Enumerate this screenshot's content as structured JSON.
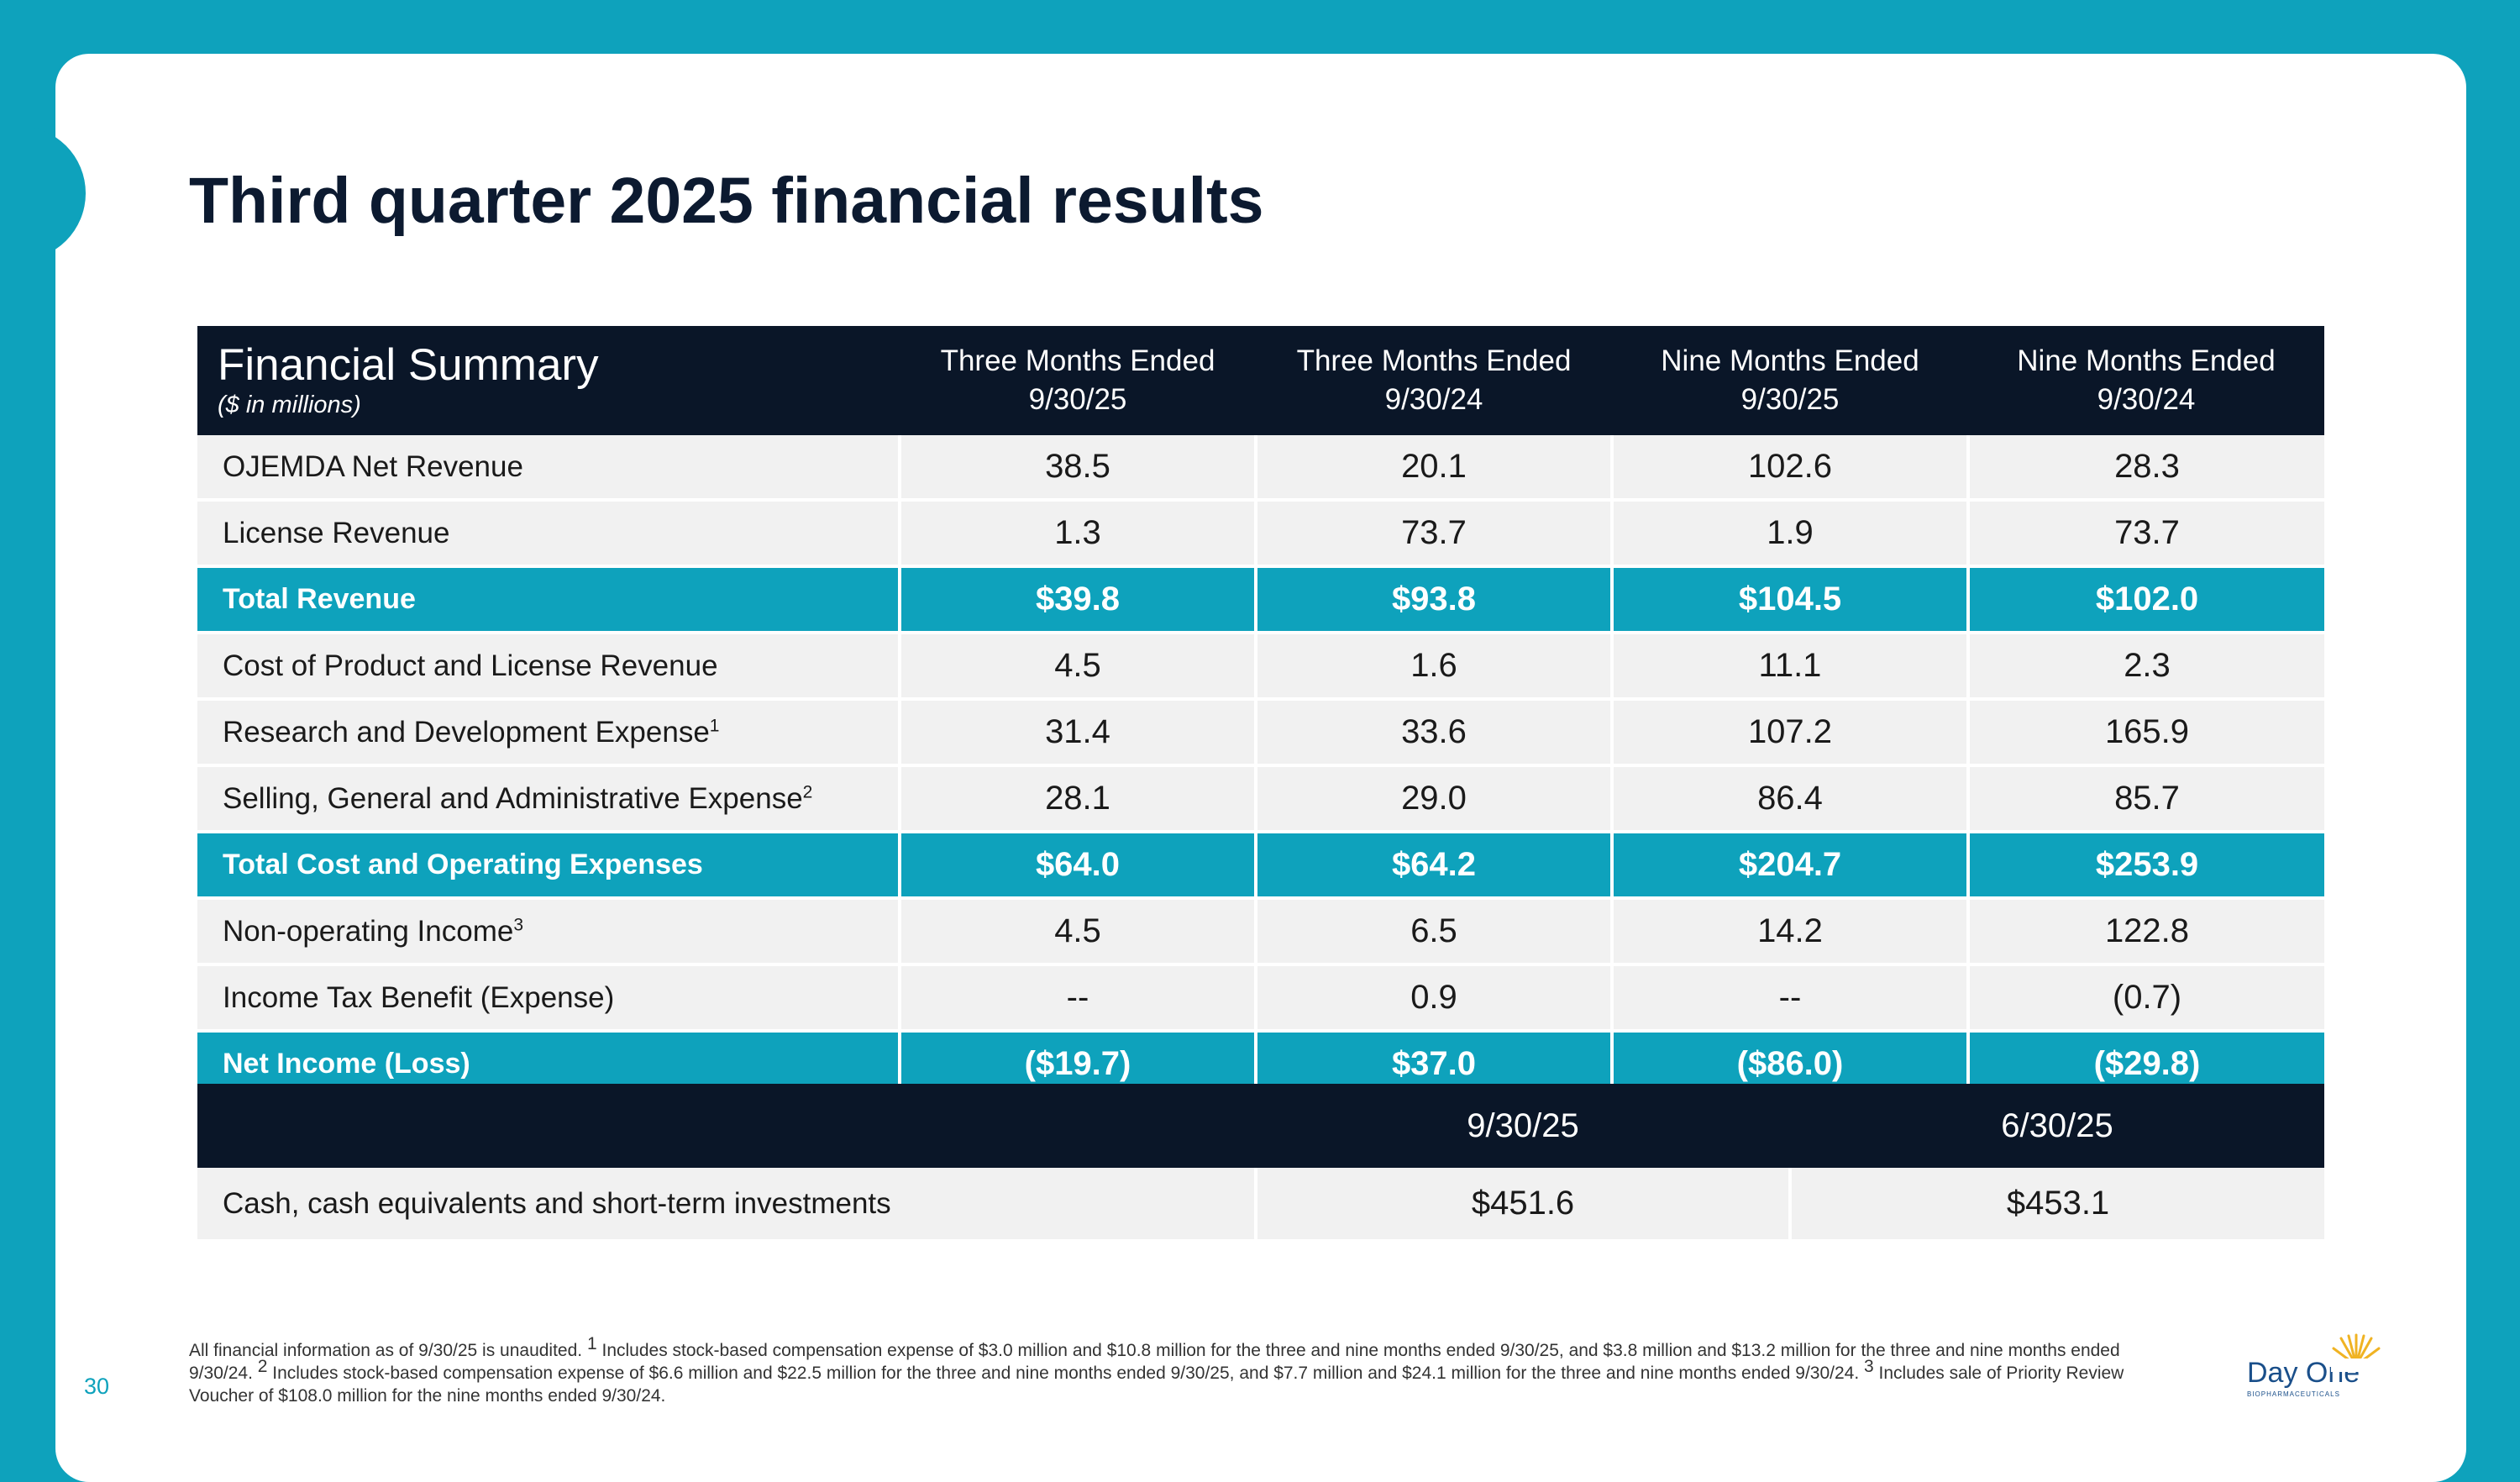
{
  "page": {
    "title": "Third quarter 2025 financial results",
    "page_number": "30"
  },
  "summary": {
    "title": "Financial Summary",
    "subtitle": "($ in millions)",
    "columns": [
      {
        "line1": "Three Months Ended",
        "line2": "9/30/25"
      },
      {
        "line1": "Three Months Ended",
        "line2": "9/30/24"
      },
      {
        "line1": "Nine Months Ended",
        "line2": "9/30/25"
      },
      {
        "line1": "Nine Months Ended",
        "line2": "9/30/24"
      }
    ],
    "rows": [
      {
        "label": "OJEMDA Net Revenue",
        "sup": "",
        "values": [
          "38.5",
          "20.1",
          "102.6",
          "28.3"
        ],
        "highlight": false
      },
      {
        "label": "License Revenue",
        "sup": "",
        "values": [
          "1.3",
          "73.7",
          "1.9",
          "73.7"
        ],
        "highlight": false
      },
      {
        "label": "Total Revenue",
        "sup": "",
        "values": [
          "$39.8",
          "$93.8",
          "$104.5",
          "$102.0"
        ],
        "highlight": true
      },
      {
        "label": "Cost of Product and License Revenue",
        "sup": "",
        "values": [
          "4.5",
          "1.6",
          "11.1",
          "2.3"
        ],
        "highlight": false
      },
      {
        "label": "Research and Development Expense",
        "sup": "1",
        "values": [
          "31.4",
          "33.6",
          "107.2",
          "165.9"
        ],
        "highlight": false
      },
      {
        "label": "Selling, General and Administrative Expense",
        "sup": "2",
        "values": [
          "28.1",
          "29.0",
          "86.4",
          "85.7"
        ],
        "highlight": false
      },
      {
        "label": "Total Cost and Operating Expenses",
        "sup": "",
        "values": [
          "$64.0",
          "$64.2",
          "$204.7",
          "$253.9"
        ],
        "highlight": true
      },
      {
        "label": "Non-operating Income",
        "sup": "3",
        "values": [
          "4.5",
          "6.5",
          "14.2",
          "122.8"
        ],
        "highlight": false
      },
      {
        "label": "Income Tax Benefit (Expense)",
        "sup": "",
        "values": [
          "--",
          "0.9",
          "--",
          "(0.7)"
        ],
        "highlight": false
      },
      {
        "label": "Net Income (Loss)",
        "sup": "",
        "values": [
          "($19.7)",
          "$37.0",
          "($86.0)",
          "($29.8)"
        ],
        "highlight": true
      }
    ]
  },
  "cash": {
    "col1": "9/30/25",
    "col2": "6/30/25",
    "label": "Cash, cash equivalents and short-term investments",
    "value1": "$451.6",
    "value2": "$453.1"
  },
  "footnote": {
    "intro": "All financial information as of 9/30/25 is unaudited. ",
    "n1": "1",
    "t1": " Includes stock-based compensation expense of $3.0 million and $10.8 million for the three and nine months ended 9/30/25, and $3.8 million and $13.2 million for the three and nine months ended 9/30/24. ",
    "n2": "2",
    "t2": " Includes stock-based compensation expense of $6.6 million and $22.5 million for the three and nine months ended 9/30/25, and $7.7 million and $24.1 million for the three and nine months ended 9/30/24. ",
    "n3": "3",
    "t3": " Includes sale of Priority Review Voucher of $108.0 million for the nine months ended 9/30/24."
  },
  "logo": {
    "name": "Day One",
    "tagline": "BIOPHARMACEUTICALS",
    "icon": "sun-icon"
  },
  "colors": {
    "accent": "#0ea2bc",
    "header": "#0a1628",
    "row": "#f1f1f1",
    "title": "#0c1a30"
  }
}
